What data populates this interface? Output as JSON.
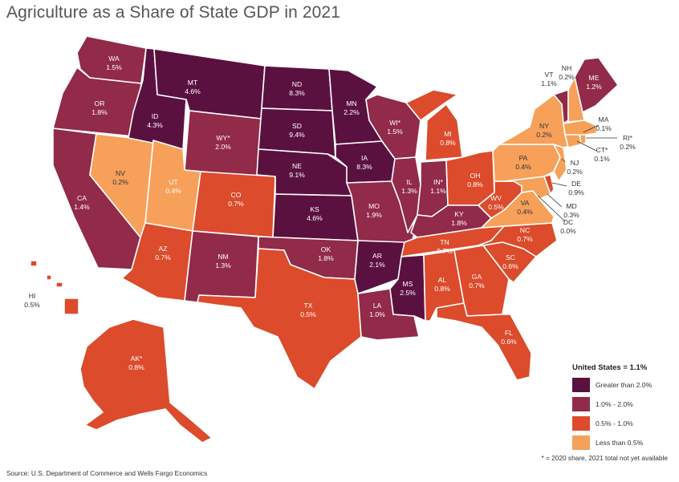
{
  "title": "Agriculture as a Share of State GDP in 2021",
  "colors": {
    "greater_than_2": "#5b1140",
    "one_to_two": "#922a4a",
    "half_to_one": "#dc4b2c",
    "less_than_half": "#f7a05a"
  },
  "legend": {
    "title": "United States = 1.1%",
    "items": [
      {
        "label": "Greater than 2.0%",
        "color": "#5b1140"
      },
      {
        "label": "1.0% - 2.0%",
        "color": "#922a4a"
      },
      {
        "label": "0.5% - 1.0%",
        "color": "#dc4b2c"
      },
      {
        "label": "Less than 0.5%",
        "color": "#f7a05a"
      }
    ]
  },
  "states": {
    "WA": {
      "name": "WA",
      "value": "1.5%"
    },
    "OR": {
      "name": "OR",
      "value": "1.8%"
    },
    "CA": {
      "name": "CA",
      "value": "1.4%"
    },
    "NV": {
      "name": "NV",
      "value": "0.2%"
    },
    "ID": {
      "name": "ID",
      "value": "4.3%"
    },
    "MT": {
      "name": "MT",
      "value": "4.6%"
    },
    "WY": {
      "name": "WY*",
      "value": "2.0%"
    },
    "UT": {
      "name": "UT",
      "value": "0.4%"
    },
    "AZ": {
      "name": "AZ",
      "value": "0.7%"
    },
    "CO": {
      "name": "CO",
      "value": "0.7%"
    },
    "NM": {
      "name": "NM",
      "value": "1.3%"
    },
    "ND": {
      "name": "ND",
      "value": "8.3%"
    },
    "SD": {
      "name": "SD",
      "value": "9.4%"
    },
    "NE": {
      "name": "NE",
      "value": "9.1%"
    },
    "KS": {
      "name": "KS",
      "value": "4.6%"
    },
    "OK": {
      "name": "OK",
      "value": "1.8%"
    },
    "TX": {
      "name": "TX",
      "value": "0.5%"
    },
    "MN": {
      "name": "MN",
      "value": "2.2%"
    },
    "IA": {
      "name": "IA",
      "value": "8.3%"
    },
    "MO": {
      "name": "MO",
      "value": "1.9%"
    },
    "AR": {
      "name": "AR",
      "value": "2.1%"
    },
    "LA": {
      "name": "LA",
      "value": "1.0%"
    },
    "WI": {
      "name": "WI*",
      "value": "1.5%"
    },
    "IL": {
      "name": "IL",
      "value": "1.3%"
    },
    "MI": {
      "name": "MI",
      "value": "0.8%"
    },
    "IN": {
      "name": "IN*",
      "value": "1.1%"
    },
    "OH": {
      "name": "OH",
      "value": "0.8%"
    },
    "KY": {
      "name": "KY",
      "value": "1.8%"
    },
    "TN": {
      "name": "TN",
      "value": "0.7%"
    },
    "MS": {
      "name": "MS",
      "value": "2.5%"
    },
    "AL": {
      "name": "AL",
      "value": "0.8%"
    },
    "GA": {
      "name": "GA",
      "value": "0.7%"
    },
    "FL": {
      "name": "FL",
      "value": "0.6%"
    },
    "SC": {
      "name": "SC",
      "value": "0.6%"
    },
    "NC": {
      "name": "NC",
      "value": "0.7%"
    },
    "VA": {
      "name": "VA",
      "value": "0.4%"
    },
    "WV": {
      "name": "WV",
      "value": "0.5%"
    },
    "MD": {
      "name": "MD",
      "value": "0.3%"
    },
    "DE": {
      "name": "DE",
      "value": "0.9%"
    },
    "DC": {
      "name": "DC",
      "value": "0.0%"
    },
    "PA": {
      "name": "PA",
      "value": "0.4%"
    },
    "NJ": {
      "name": "NJ",
      "value": "0.2%"
    },
    "NY": {
      "name": "NY",
      "value": "0.2%"
    },
    "CT": {
      "name": "CT*",
      "value": "0.1%"
    },
    "RI": {
      "name": "RI*",
      "value": "0.2%"
    },
    "MA": {
      "name": "MA",
      "value": "0.1%"
    },
    "VT": {
      "name": "VT",
      "value": "1.1%"
    },
    "NH": {
      "name": "NH",
      "value": "0.2%"
    },
    "ME": {
      "name": "ME",
      "value": "1.2%"
    },
    "AK": {
      "name": "AK*",
      "value": "0.8%"
    },
    "HI": {
      "name": "HI",
      "value": "0.5%"
    }
  },
  "footnote": "* = 2020 share, 2021 total not yet available",
  "source": "Source: U.S. Department of Commerce and Wells Fargo Economics"
}
